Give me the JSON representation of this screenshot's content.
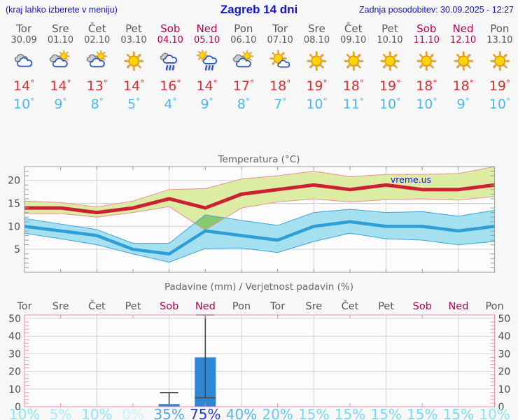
{
  "header": {
    "left": "(kraj lahko izberete v meniju)",
    "title": "Zagreb 14 dni",
    "right": "Zadnja posodobitev: 30.09.2025 - 12:27"
  },
  "deg_symbol": "°",
  "colors": {
    "header_blue": "#1414cc",
    "weekday": "#58585a",
    "weekend": "#b5004f",
    "tmax": "#d62f36",
    "tmin": "#49b8ef",
    "title_gray": "#666666",
    "tick_label": "#4a4a4a",
    "grid": "#d2d2d2",
    "frame_temp": "#9b9b9b",
    "frame_precip": "#ef8fa0",
    "watermark": "#1111dd",
    "bar_blue": "#2e86d5",
    "whisker": "#4a4a4a",
    "plot_bg": "#fcfcfc"
  },
  "days": [
    {
      "name": "Tor",
      "date": "30.09",
      "weekend": false,
      "icon": "cloudy",
      "tmax": "14",
      "tmin": "10",
      "prob": "10%",
      "prob_color": "#8ce4f5"
    },
    {
      "name": "Sre",
      "date": "01.10",
      "weekend": false,
      "icon": "partly-cloudy",
      "tmax": "14",
      "tmin": "9",
      "prob": "5%",
      "prob_color": "#abecf8"
    },
    {
      "name": "Čet",
      "date": "02.10",
      "weekend": false,
      "icon": "partly-cloudy",
      "tmax": "13",
      "tmin": "8",
      "prob": "10%",
      "prob_color": "#8ce4f5"
    },
    {
      "name": "Pet",
      "date": "03.10",
      "weekend": false,
      "icon": "sunny",
      "tmax": "14",
      "tmin": "5",
      "prob": "0%",
      "prob_color": "#c8f3fb"
    },
    {
      "name": "Sob",
      "date": "04.10",
      "weekend": true,
      "icon": "rain",
      "tmax": "16",
      "tmin": "4",
      "prob": "35%",
      "prob_color": "#51a9e2"
    },
    {
      "name": "Ned",
      "date": "05.10",
      "weekend": true,
      "icon": "sun-rain",
      "tmax": "14",
      "tmin": "9",
      "prob": "75%",
      "prob_color": "#2739c9"
    },
    {
      "name": "Pon",
      "date": "06.10",
      "weekend": false,
      "icon": "partly-cloudy",
      "tmax": "17",
      "tmin": "8",
      "prob": "40%",
      "prob_color": "#55b7ea"
    },
    {
      "name": "Tor",
      "date": "07.10",
      "weekend": false,
      "icon": "mostly-sunny",
      "tmax": "18",
      "tmin": "7",
      "prob": "20%",
      "prob_color": "#66cdf0"
    },
    {
      "name": "Sre",
      "date": "08.10",
      "weekend": false,
      "icon": "sunny",
      "tmax": "19",
      "tmin": "10",
      "prob": "15%",
      "prob_color": "#77daf3"
    },
    {
      "name": "Čet",
      "date": "09.10",
      "weekend": false,
      "icon": "sunny",
      "tmax": "18",
      "tmin": "11",
      "prob": "15%",
      "prob_color": "#77daf3"
    },
    {
      "name": "Pet",
      "date": "10.10",
      "weekend": false,
      "icon": "sunny",
      "tmax": "19",
      "tmin": "10",
      "prob": "15%",
      "prob_color": "#77daf3"
    },
    {
      "name": "Sob",
      "date": "11.10",
      "weekend": true,
      "icon": "sunny",
      "tmax": "18",
      "tmin": "10",
      "prob": "15%",
      "prob_color": "#77daf3"
    },
    {
      "name": "Ned",
      "date": "12.10",
      "weekend": true,
      "icon": "sunny",
      "tmax": "18",
      "tmin": "9",
      "prob": "15%",
      "prob_color": "#77daf3"
    },
    {
      "name": "Pon",
      "date": "13.10",
      "weekend": false,
      "icon": "sunny",
      "tmax": "19",
      "tmin": "10",
      "prob": "10%",
      "prob_color": "#8ce4f5"
    }
  ],
  "chart_data": [
    {
      "type": "line",
      "title": "Temperatura (°C)",
      "watermark": "vreme.us",
      "x_labels": [
        "Tor",
        "Sre",
        "Čet",
        "Pet",
        "Sob",
        "Ned",
        "Pon",
        "Tor",
        "Sre",
        "Čet",
        "Pet",
        "Sob",
        "Ned",
        "Pon"
      ],
      "ylim": [
        0,
        23
      ],
      "yticks": [
        5,
        10,
        15,
        20
      ],
      "grid": true,
      "series": [
        {
          "name": "temp-max",
          "color": "#cc2133",
          "width": 5,
          "values": [
            14,
            14,
            13,
            14,
            16,
            14,
            17,
            18,
            19,
            18,
            19,
            18,
            18,
            19
          ]
        },
        {
          "name": "temp-min",
          "color": "#2d9ed8",
          "width": 4.5,
          "values": [
            10,
            9,
            8,
            5,
            4,
            9,
            8,
            7,
            10,
            11,
            10,
            10,
            9,
            10
          ]
        }
      ],
      "bands": [
        {
          "name": "temp-max-range",
          "fill": "#dceda3",
          "stroke": "#e59099",
          "upper": [
            15.5,
            15.2,
            14.2,
            15.5,
            18.0,
            18.2,
            20.3,
            21.0,
            22.0,
            20.8,
            21.3,
            21.3,
            21.5,
            23.0
          ],
          "lower": [
            12.8,
            12.8,
            12.0,
            13.0,
            14.3,
            9.2,
            14.0,
            15.3,
            16.0,
            15.3,
            15.8,
            16.0,
            15.7,
            16.5
          ]
        },
        {
          "name": "temp-min-range",
          "fill": "#a5e0f0",
          "stroke": "#3ba4da",
          "upper": [
            11.7,
            10.5,
            9.3,
            6.3,
            6.3,
            12.5,
            11.3,
            10.2,
            13.0,
            13.7,
            13.0,
            13.2,
            12.2,
            13.5
          ],
          "lower": [
            8.5,
            7.3,
            6.0,
            4.0,
            2.2,
            5.2,
            5.3,
            4.3,
            6.7,
            8.5,
            7.3,
            7.0,
            6.0,
            6.7
          ]
        }
      ],
      "overlap": {
        "fill": "#85c96d",
        "points": [
          [
            4.71,
            10.7
          ],
          [
            5,
            12.5
          ],
          [
            5.55,
            11.84
          ],
          [
            5,
            9.2
          ]
        ]
      }
    },
    {
      "type": "bar",
      "title": "Padavine (mm) / Verjetnost padavin (%)",
      "x_labels": [
        "Tor",
        "Sre",
        "Čet",
        "Pet",
        "Sob",
        "Ned",
        "Pon",
        "Tor",
        "Sre",
        "Čet",
        "Pet",
        "Sob",
        "Ned",
        "Pon"
      ],
      "ylim": [
        0,
        52
      ],
      "yticks": [
        0,
        10,
        20,
        30,
        40,
        50
      ],
      "grid": true,
      "values": [
        0,
        0,
        0,
        0,
        1.5,
        28,
        0,
        0,
        0,
        0,
        0,
        0,
        0,
        0
      ],
      "whisker_max": [
        null,
        null,
        null,
        null,
        8,
        52,
        null,
        null,
        null,
        null,
        null,
        null,
        null,
        null
      ],
      "whisker_min": [
        null,
        null,
        null,
        null,
        null,
        5,
        null,
        null,
        null,
        null,
        null,
        null,
        null,
        null
      ],
      "probabilities": [
        "10%",
        "5%",
        "10%",
        "0%",
        "35%",
        "75%",
        "40%",
        "20%",
        "15%",
        "15%",
        "15%",
        "15%",
        "15%",
        "10%"
      ]
    }
  ]
}
